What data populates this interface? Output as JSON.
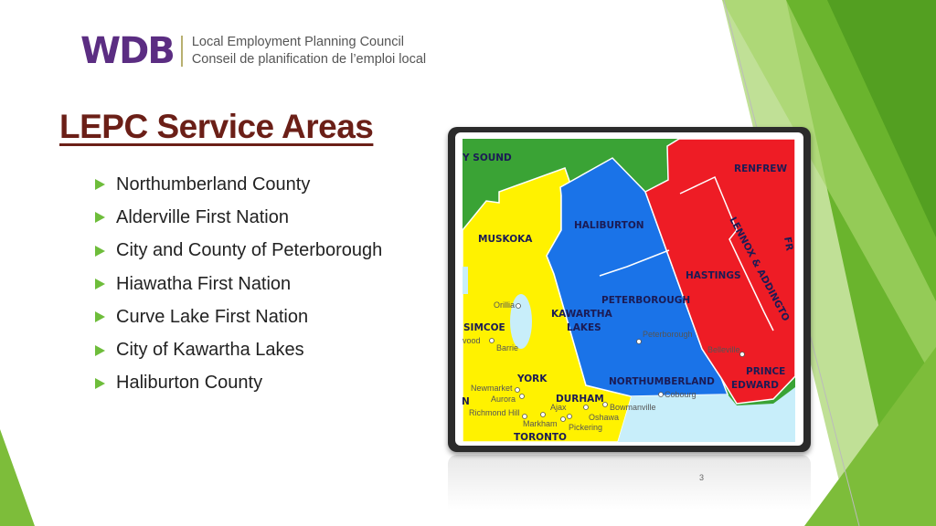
{
  "logo": {
    "wordmark": "WDB",
    "line1": "Local Employment Planning Council",
    "line2": "Conseil de planification de l’emploi local"
  },
  "title": "LEPC Service Areas",
  "bullets": [
    "Northumberland County",
    "Alderville First Nation",
    "City and County of Peterborough",
    "Hiawatha First Nation",
    "Curve Lake First Nation",
    "City of Kawartha Lakes",
    "Haliburton County"
  ],
  "map": {
    "regions": {
      "sound": "Y SOUND",
      "renfrew": "RENFREW",
      "haliburton": "HALIBURTON",
      "muskoka": "MUSKOKA",
      "hastings": "HASTINGS",
      "lennox": "LENNOX & ADDINGTO",
      "fr": "FR",
      "peterborough": "PETERBOROUGH",
      "kawartha1": "KAWARTHA",
      "kawartha2": "LAKES",
      "simcoe": "SIMCOE",
      "northumberland": "NORTHUMBERLAND",
      "prince": "PRINCE",
      "edward": "EDWARD",
      "york": "YORK",
      "durham": "DURHAM",
      "toronto": "TORONTO",
      "n": "N"
    },
    "cities": {
      "orillia": "Orillia",
      "vood": "vood",
      "barrie": "Barrie",
      "peterborough": "Peterborough",
      "belleville": "Belleville",
      "newmarket": "Newmarket",
      "aurora": "Aurora",
      "richmond": "Richmond Hill",
      "ajax": "Ajax",
      "markham": "Markham",
      "pickering": "Pickering",
      "oshawa": "Oshawa",
      "bowmanville": "Bowmanville",
      "cobourg": "Cobourg"
    },
    "colors": {
      "green": "#3aa335",
      "yellow": "#fff200",
      "blue": "#1a73e8",
      "red": "#ee1c25",
      "water": "#c8eefa"
    }
  },
  "page_number": "3",
  "theme": {
    "accent": "#6ebd3b",
    "title_color": "#6b1f17",
    "logo_color": "#5b2d82"
  }
}
